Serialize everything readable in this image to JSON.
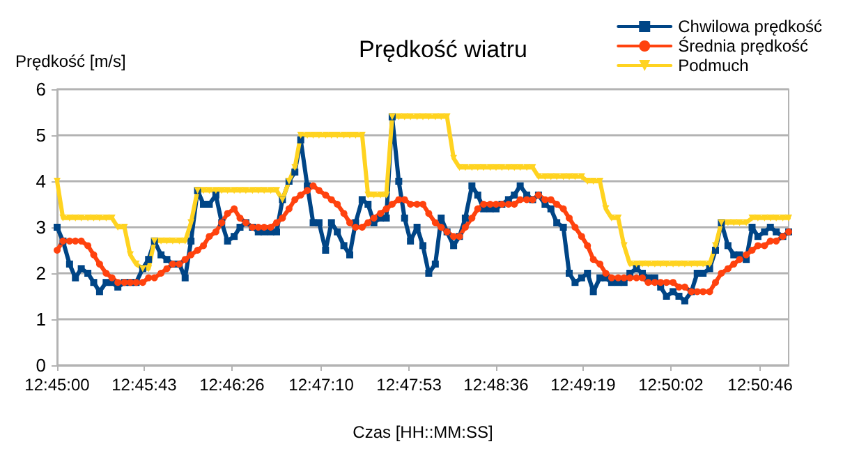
{
  "chart_data": {
    "type": "line",
    "title": "Prędkość wiatru",
    "xlabel": "Czas [HH::MM:SS]",
    "ylabel": "Prędkość [m/s]",
    "x": [
      12.75,
      12.7508,
      12.7517,
      12.7525,
      12.7533,
      12.7542,
      12.755,
      12.7558,
      12.7567,
      12.7575,
      12.7583,
      12.7592,
      12.76,
      12.7608,
      12.7617,
      12.7625,
      12.7633,
      12.7642,
      12.765,
      12.7658,
      12.7667,
      12.7675,
      12.7683,
      12.7692,
      12.77,
      12.7708,
      12.7717,
      12.7725,
      12.7733,
      12.7742,
      12.775,
      12.7758,
      12.7767,
      12.7775,
      12.7783,
      12.7792,
      12.78,
      12.7808,
      12.7817,
      12.7825,
      12.7833,
      12.7842,
      12.785,
      12.7858,
      12.7867,
      12.7875,
      12.7883,
      12.7892,
      12.79,
      12.7908,
      12.7917,
      12.7925,
      12.7933,
      12.7942,
      12.795,
      12.7958,
      12.7967,
      12.7975,
      12.7983,
      12.7992,
      12.8,
      12.8008,
      12.8017,
      12.8025,
      12.8033,
      12.8042,
      12.805,
      12.8058,
      12.8067,
      12.8075,
      12.8083,
      12.8092,
      12.81,
      12.8108,
      12.8117,
      12.8125,
      12.8133,
      12.8142,
      12.815,
      12.8158,
      12.8167,
      12.8175,
      12.8183,
      12.8192,
      12.82,
      12.8208,
      12.8217,
      12.8225,
      12.8233,
      12.8242,
      12.825,
      12.8258,
      12.8267,
      12.8275,
      12.8283,
      12.8292,
      12.83,
      12.8308,
      12.8317,
      12.8325,
      12.8333,
      12.8342,
      12.835,
      12.8358,
      12.8367,
      12.8375,
      12.8383,
      12.8392,
      12.84,
      12.8408,
      12.8417,
      12.8425,
      12.8433,
      12.8442,
      12.845,
      12.8458,
      12.8467,
      12.8475,
      12.8483,
      12.8492,
      12.85
    ],
    "series": [
      {
        "name": "Chwilowa prędkość",
        "color": "#004586",
        "marker": "square",
        "values": [
          3.0,
          2.7,
          2.2,
          1.9,
          2.1,
          2.0,
          1.8,
          1.6,
          1.8,
          1.8,
          1.7,
          1.8,
          1.8,
          1.8,
          2.1,
          2.3,
          2.7,
          2.4,
          2.3,
          2.2,
          2.2,
          1.9,
          2.7,
          3.8,
          3.5,
          3.5,
          3.7,
          3.1,
          2.7,
          2.8,
          3.0,
          3.1,
          3.0,
          2.9,
          2.9,
          2.9,
          2.9,
          3.6,
          4.0,
          4.2,
          4.9,
          3.9,
          3.1,
          3.1,
          2.5,
          3.1,
          2.9,
          2.6,
          2.4,
          3.1,
          3.6,
          3.5,
          3.1,
          3.2,
          3.2,
          5.4,
          4.0,
          3.2,
          2.7,
          3.0,
          2.6,
          2.0,
          2.2,
          3.2,
          2.9,
          2.6,
          2.8,
          3.2,
          3.9,
          3.7,
          3.4,
          3.4,
          3.4,
          3.5,
          3.6,
          3.7,
          3.9,
          3.7,
          3.6,
          3.7,
          3.5,
          3.4,
          3.1,
          3.0,
          2.0,
          1.8,
          1.9,
          2.0,
          1.6,
          1.9,
          1.9,
          1.8,
          1.8,
          1.8,
          2.0,
          2.1,
          2.0,
          1.9,
          1.9,
          1.7,
          1.5,
          1.6,
          1.5,
          1.4,
          1.6,
          2.0,
          2.0,
          2.1,
          2.5,
          3.1,
          2.6,
          2.4,
          2.4,
          2.3,
          3.0,
          2.8,
          2.9,
          3.0,
          2.9,
          2.8,
          2.9
        ]
      },
      {
        "name": "Średnia prędkość",
        "color": "#ff420e",
        "marker": "circle",
        "values": [
          2.5,
          2.7,
          2.7,
          2.7,
          2.7,
          2.6,
          2.4,
          2.2,
          2.0,
          1.9,
          1.8,
          1.8,
          1.8,
          1.8,
          1.8,
          1.9,
          1.9,
          2.0,
          2.1,
          2.2,
          2.2,
          2.3,
          2.4,
          2.5,
          2.6,
          2.8,
          2.9,
          3.1,
          3.3,
          3.4,
          3.2,
          3.1,
          3.0,
          3.0,
          3.0,
          3.0,
          3.1,
          3.2,
          3.4,
          3.6,
          3.7,
          3.8,
          3.9,
          3.8,
          3.7,
          3.6,
          3.5,
          3.3,
          3.1,
          3.0,
          3.0,
          3.1,
          3.2,
          3.3,
          3.4,
          3.5,
          3.6,
          3.6,
          3.5,
          3.5,
          3.5,
          3.3,
          3.1,
          3.0,
          2.9,
          2.8,
          2.8,
          3.0,
          3.2,
          3.4,
          3.5,
          3.5,
          3.5,
          3.5,
          3.5,
          3.5,
          3.6,
          3.6,
          3.6,
          3.7,
          3.6,
          3.6,
          3.5,
          3.4,
          3.2,
          3.0,
          2.8,
          2.6,
          2.3,
          2.2,
          2.0,
          1.9,
          1.9,
          1.9,
          1.9,
          1.9,
          1.9,
          1.8,
          1.8,
          1.8,
          1.8,
          1.8,
          1.7,
          1.7,
          1.6,
          1.6,
          1.6,
          1.6,
          1.8,
          2.0,
          2.1,
          2.2,
          2.3,
          2.4,
          2.5,
          2.6,
          2.6,
          2.7,
          2.7,
          2.8,
          2.9
        ]
      },
      {
        "name": "Podmuch",
        "color": "#ffd320",
        "marker": "triangle",
        "values": [
          4.0,
          3.2,
          3.2,
          3.2,
          3.2,
          3.2,
          3.2,
          3.2,
          3.2,
          3.2,
          3.0,
          3.0,
          2.4,
          2.2,
          2.1,
          2.1,
          2.7,
          2.7,
          2.7,
          2.7,
          2.7,
          2.7,
          3.1,
          3.8,
          3.8,
          3.8,
          3.8,
          3.8,
          3.8,
          3.8,
          3.8,
          3.8,
          3.8,
          3.8,
          3.8,
          3.8,
          3.8,
          3.6,
          4.0,
          4.3,
          5.0,
          5.0,
          5.0,
          5.0,
          5.0,
          5.0,
          5.0,
          5.0,
          5.0,
          5.0,
          5.0,
          3.7,
          3.7,
          3.7,
          3.7,
          5.4,
          5.4,
          5.4,
          5.4,
          5.4,
          5.4,
          5.4,
          5.4,
          5.4,
          5.4,
          4.5,
          4.3,
          4.3,
          4.3,
          4.3,
          4.3,
          4.3,
          4.3,
          4.3,
          4.3,
          4.3,
          4.3,
          4.3,
          4.3,
          4.1,
          4.1,
          4.1,
          4.1,
          4.1,
          4.1,
          4.1,
          4.1,
          4.0,
          4.0,
          4.0,
          3.4,
          3.2,
          3.2,
          2.6,
          2.2,
          2.2,
          2.2,
          2.2,
          2.2,
          2.2,
          2.2,
          2.2,
          2.2,
          2.2,
          2.2,
          2.2,
          2.2,
          2.2,
          2.6,
          3.1,
          3.1,
          3.1,
          3.1,
          3.1,
          3.2,
          3.2,
          3.2,
          3.2,
          3.2,
          3.2,
          3.2
        ]
      }
    ],
    "xlim": [
      12.75,
      12.85
    ],
    "xticks": [
      {
        "value": 12.75,
        "label": "12:45:00"
      },
      {
        "value": 12.7619,
        "label": "12:45:43"
      },
      {
        "value": 12.7739,
        "label": "12:46:26"
      },
      {
        "value": 12.7861,
        "label": "12:47:10"
      },
      {
        "value": 12.7981,
        "label": "12:47:53"
      },
      {
        "value": 12.81,
        "label": "12:48:36"
      },
      {
        "value": 12.8219,
        "label": "12:49:19"
      },
      {
        "value": 12.8339,
        "label": "12:50:02"
      },
      {
        "value": 12.8461,
        "label": "12:50:46"
      }
    ],
    "ylim": [
      0,
      6
    ],
    "yticks": [
      0,
      1,
      2,
      3,
      4,
      5,
      6
    ],
    "grid": "y",
    "legend": "top right",
    "line_style": "solid"
  }
}
